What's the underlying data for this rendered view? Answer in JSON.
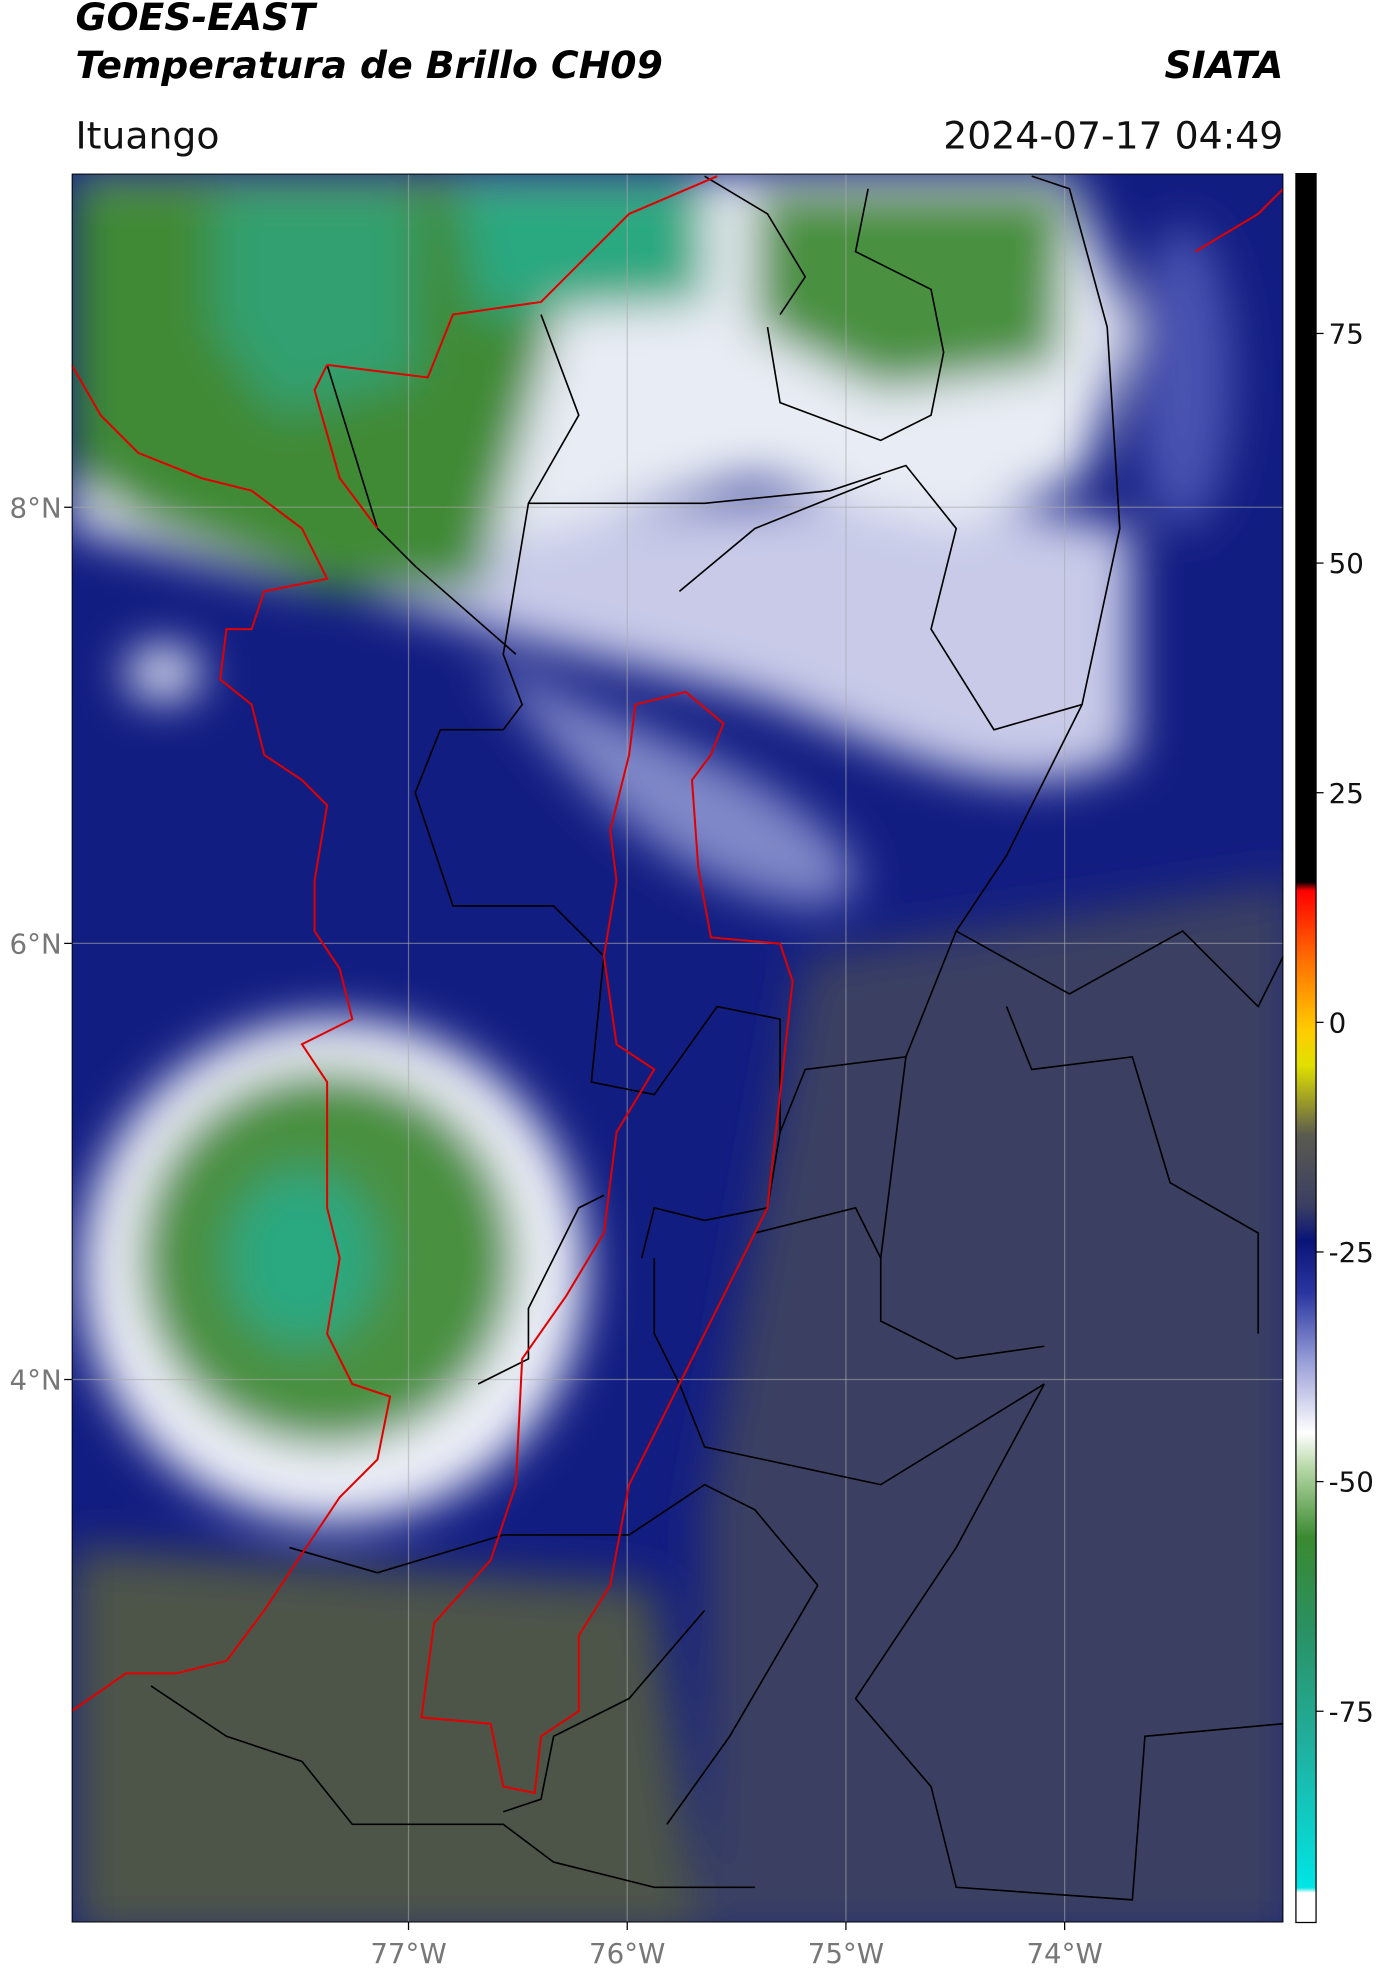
{
  "title": "GOES-EAST",
  "subtitle": "Temperatura de Brillo CH09",
  "credit": "SIATA",
  "location": "Ituango",
  "datetime": "2024-07-17 04:49",
  "map": {
    "type": "map",
    "xlim": [
      -78.54,
      -73.0
    ],
    "ylim": [
      1.51,
      9.53
    ],
    "xticks": [
      {
        "value": -77,
        "label": "77°W"
      },
      {
        "value": -76,
        "label": "76°W"
      },
      {
        "value": -75,
        "label": "75°W"
      },
      {
        "value": -74,
        "label": "74°W"
      }
    ],
    "yticks": [
      {
        "value": 8,
        "label": "8°N"
      },
      {
        "value": 6,
        "label": "6°N"
      },
      {
        "value": 4,
        "label": "4°N"
      }
    ],
    "grid": true
  },
  "colorbar": {
    "clim": [
      -98,
      92.4
    ],
    "ticks": [
      75,
      50,
      25,
      0,
      -25,
      -50,
      -75
    ]
  }
}
